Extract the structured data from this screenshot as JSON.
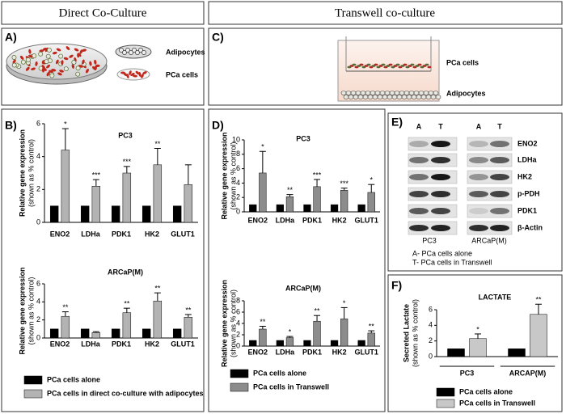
{
  "headers": [
    "Direct Co-Culture",
    "Transwell co-culture"
  ],
  "panel_labels": [
    "A)",
    "B)",
    "C)",
    "D)",
    "E)",
    "F)"
  ],
  "illustration_a": {
    "labels": [
      "Adipocytes",
      "PCa cells"
    ]
  },
  "illustration_c": {
    "labels": [
      "PCa cells",
      "Adipocytes"
    ]
  },
  "blot": {
    "lanes": [
      "A",
      "T",
      "A",
      "T"
    ],
    "proteins": [
      "ENO2",
      "LDHa",
      "HK2",
      "p-PDH",
      "PDK1",
      "β-Actin"
    ],
    "groups": [
      "PC3",
      "ARCaP(M)"
    ],
    "notes": [
      "A- PCa cells alone",
      "T- PCa cells in Transwell"
    ]
  },
  "chart_data": [
    {
      "type": "bar",
      "title": "PC3",
      "ylabel": [
        "Relative gene expression",
        "(shown as % control)"
      ],
      "categories": [
        "ENO2",
        "LDHa",
        "PDK1",
        "HK2",
        "GLUT1"
      ],
      "ylim": [
        0,
        6
      ],
      "yticks": [
        0,
        2,
        4,
        6
      ],
      "series": [
        {
          "color": "#000000",
          "values": [
            1,
            1,
            1,
            1,
            1
          ]
        },
        {
          "color": "#b3b3b3",
          "values": [
            4.4,
            2.2,
            3.0,
            3.5,
            2.3
          ],
          "errors": [
            1.3,
            0.4,
            0.4,
            1.0,
            1.2
          ],
          "significance": [
            "*",
            "***",
            "***",
            "**",
            null
          ]
        }
      ]
    },
    {
      "type": "bar",
      "title": "ARCaP(M)",
      "ylabel": [
        "Relative gene expression",
        "(shown as % control)"
      ],
      "categories": [
        "ENO2",
        "LDHa",
        "PDK1",
        "HK2",
        "GLUT1"
      ],
      "ylim": [
        0,
        6
      ],
      "yticks": [
        0,
        2,
        4,
        6
      ],
      "series": [
        {
          "name": "PCa cells alone",
          "color": "#000000",
          "values": [
            1,
            1,
            1,
            1,
            1
          ]
        },
        {
          "name": "PCa cells in direct co-culture with adipocytes",
          "color": "#b3b3b3",
          "values": [
            2.4,
            0.6,
            2.8,
            4.1,
            2.3
          ],
          "errors": [
            0.5,
            0.1,
            0.5,
            0.9,
            0.3
          ],
          "significance": [
            "**",
            null,
            "**",
            "**",
            "**"
          ]
        }
      ]
    },
    {
      "type": "bar",
      "title": "PC3",
      "ylabel": [
        "Relative gene expression",
        "(shown as % control)"
      ],
      "categories": [
        "ENO2",
        "LDHa",
        "PDK1",
        "HK2",
        "GLUT1"
      ],
      "ylim": [
        0,
        10
      ],
      "yticks": [
        0,
        2,
        4,
        6,
        8,
        10
      ],
      "series": [
        {
          "color": "#000000",
          "values": [
            1,
            1,
            1,
            1,
            1
          ]
        },
        {
          "color": "#8c8c8c",
          "values": [
            5.4,
            2.1,
            3.5,
            3.0,
            2.7
          ],
          "errors": [
            3.0,
            0.3,
            1.0,
            0.3,
            1.1
          ],
          "significance": [
            "*",
            "**",
            "***",
            "***",
            "*"
          ]
        }
      ]
    },
    {
      "type": "bar",
      "title": "ARCaP(M)",
      "ylabel": [
        "Relative gene expression",
        "(shown as % control)"
      ],
      "categories": [
        "ENO2",
        "LDHa",
        "PDK1",
        "HK2",
        "GLUT1"
      ],
      "ylim": [
        0,
        8
      ],
      "yticks": [
        0,
        2,
        4,
        6,
        8
      ],
      "series": [
        {
          "name": "PCa cells alone",
          "color": "#000000",
          "values": [
            1,
            1,
            1,
            1,
            1
          ]
        },
        {
          "name": "PCa cells in Transwell",
          "color": "#8c8c8c",
          "values": [
            3.0,
            1.5,
            4.4,
            4.8,
            2.3
          ],
          "errors": [
            0.5,
            0.2,
            1.0,
            2.0,
            0.4
          ],
          "significance": [
            "**",
            "*",
            "**",
            "*",
            "**"
          ]
        }
      ]
    },
    {
      "type": "bar",
      "title": "LACTATE",
      "ylabel": [
        "Secreted Lactate",
        "(shown as % control)"
      ],
      "categories": [
        "PC3",
        "ARCAP(M)"
      ],
      "ylim": [
        0,
        6
      ],
      "yticks": [
        0,
        2,
        4,
        6
      ],
      "series": [
        {
          "name": "PCa cells alone",
          "color": "#000000",
          "values": [
            1,
            1
          ]
        },
        {
          "name": "PCa cells in Transwell",
          "color": "#c8c8c8",
          "values": [
            2.3,
            5.4
          ],
          "errors": [
            0.6,
            1.3
          ],
          "significance": [
            "*",
            "**"
          ]
        }
      ]
    }
  ]
}
